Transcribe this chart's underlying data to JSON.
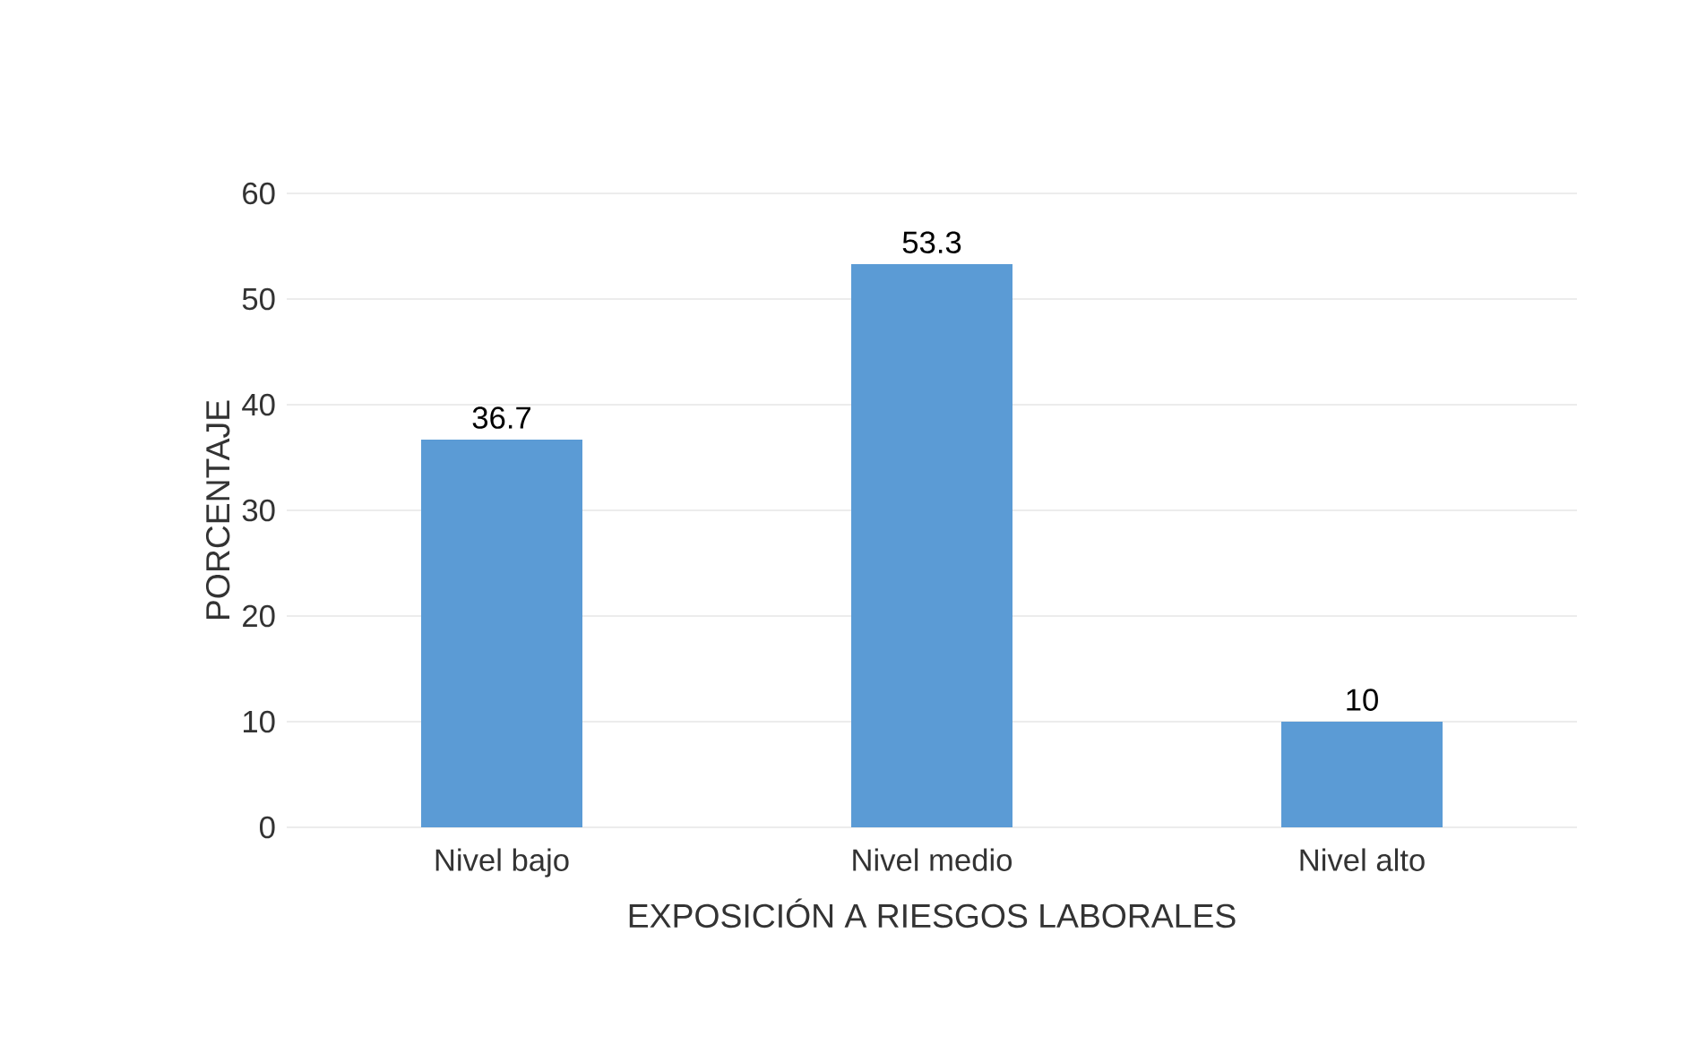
{
  "chart_data": {
    "type": "bar",
    "xlabel": "EXPOSICIÓN A RIESGOS LABORALES",
    "ylabel": "PORCENTAJE",
    "categories": [
      "Nivel bajo",
      "Nivel medio",
      "Nivel alto"
    ],
    "values": [
      36.7,
      53.3,
      10
    ],
    "color": "#5b9bd5",
    "data_labels": true,
    "ylim": [
      0,
      60
    ],
    "yticks": [
      0,
      10,
      20,
      30,
      40,
      50,
      60
    ],
    "grid": "y"
  }
}
